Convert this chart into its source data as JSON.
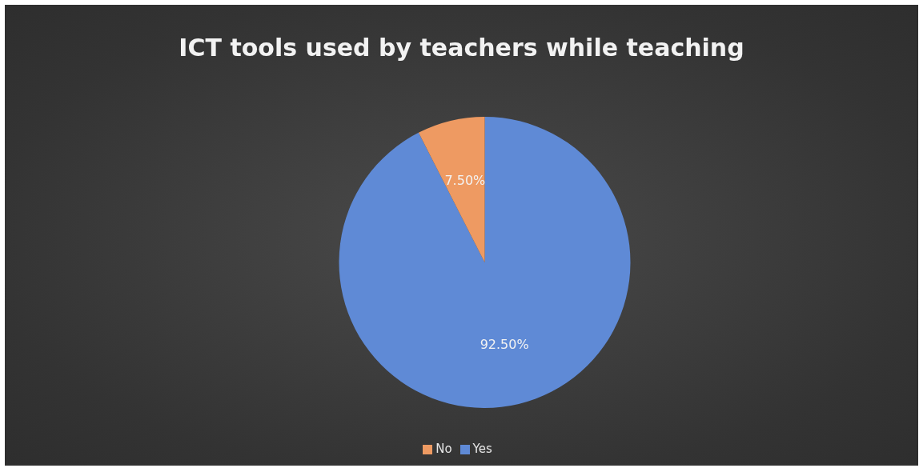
{
  "chart_data": {
    "type": "pie",
    "title": "ICT tools used by teachers while teaching",
    "categories": [
      "Yes",
      "No"
    ],
    "values": [
      92.5,
      7.5
    ],
    "colors": [
      "#5f8ad6",
      "#ee9a62"
    ],
    "value_labels": [
      "92.50%",
      "7.50%"
    ],
    "legend": "bottom"
  }
}
